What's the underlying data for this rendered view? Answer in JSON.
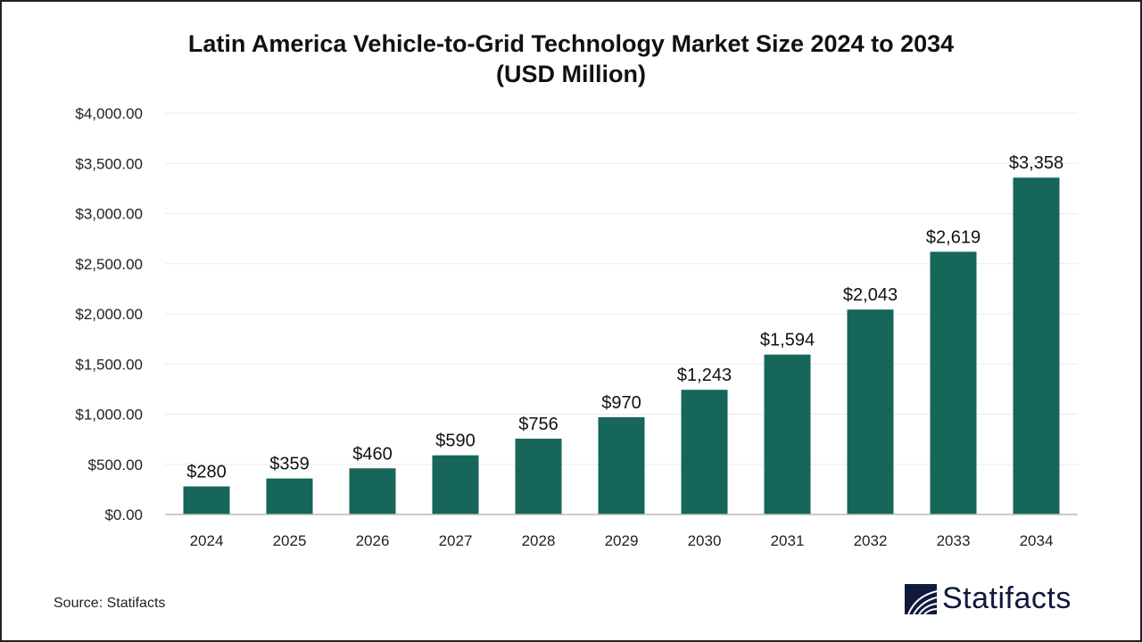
{
  "chart_data": {
    "type": "bar",
    "title": "Latin America Vehicle-to-Grid Technology Market Size 2024 to 2034",
    "subtitle": "(USD Million)",
    "categories": [
      "2024",
      "2025",
      "2026",
      "2027",
      "2028",
      "2029",
      "2030",
      "2031",
      "2032",
      "2033",
      "2034"
    ],
    "values": [
      280,
      359,
      460,
      590,
      756,
      970,
      1243,
      1594,
      2043,
      2619,
      3358
    ],
    "data_labels": [
      "$280",
      "$359",
      "$460",
      "$590",
      "$756",
      "$970",
      "$1,243",
      "$1,594",
      "$2,043",
      "$2,619",
      "$3,358"
    ],
    "y_ticks": [
      0,
      500,
      1000,
      1500,
      2000,
      2500,
      3000,
      3500,
      4000
    ],
    "y_tick_labels": [
      "$0.00",
      "$500.00",
      "$1,000.00",
      "$1,500.00",
      "$2,000.00",
      "$2,500.00",
      "$3,000.00",
      "$3,500.00",
      "$4,000.00"
    ],
    "ylim": [
      0,
      4000
    ],
    "xlabel": "",
    "ylabel": "",
    "grid": true,
    "bar_color": "#17665a"
  },
  "source": "Source: Statifacts",
  "logo": {
    "text": "Statifacts",
    "color": "#0f1a3c"
  }
}
